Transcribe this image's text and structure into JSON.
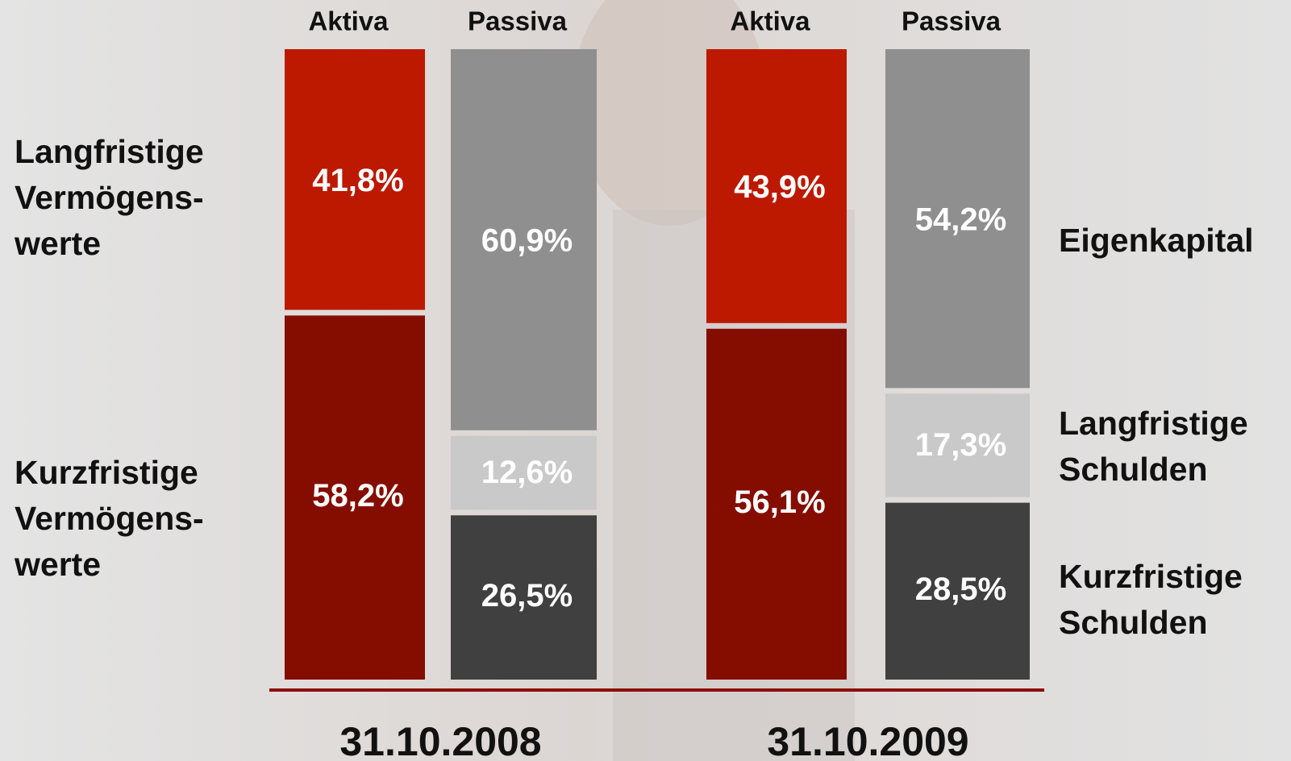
{
  "chart_data": {
    "type": "stacked_bar",
    "categories": [
      "Aktiva",
      "Passiva",
      "Aktiva",
      "Passiva"
    ],
    "groups": [
      "31.10.2008",
      "31.10.2009"
    ],
    "series": [
      {
        "name": [
          "Kurzfristige",
          "Vermögens-",
          "werte"
        ],
        "color": "#850d00",
        "values": [
          58.2,
          null,
          56.1,
          null
        ],
        "value_labels": [
          "58,2%",
          null,
          "56,1%",
          null
        ]
      },
      {
        "name": [
          "Langfristige",
          "Vermögens-",
          "werte"
        ],
        "color": "#bd1800",
        "values": [
          41.8,
          null,
          43.9,
          null
        ],
        "value_labels": [
          "41,8%",
          null,
          "43,9%",
          null
        ]
      },
      {
        "name": [
          "Kurzfristige",
          "Schulden"
        ],
        "color": "#404040",
        "values": [
          null,
          26.5,
          null,
          28.5
        ],
        "value_labels": [
          null,
          "26,5%",
          null,
          "28,5%"
        ]
      },
      {
        "name": [
          "Langfristige",
          "Schulden"
        ],
        "color": "#c9c9c9",
        "values": [
          null,
          12.6,
          null,
          17.3
        ],
        "value_labels": [
          null,
          "12,6%",
          null,
          "17,3%"
        ]
      },
      {
        "name": [
          "Eigenkapital"
        ],
        "color": "#8f8f8f",
        "values": [
          null,
          60.9,
          null,
          54.2
        ],
        "value_labels": [
          null,
          "60,9%",
          null,
          "54,2%"
        ]
      }
    ]
  }
}
